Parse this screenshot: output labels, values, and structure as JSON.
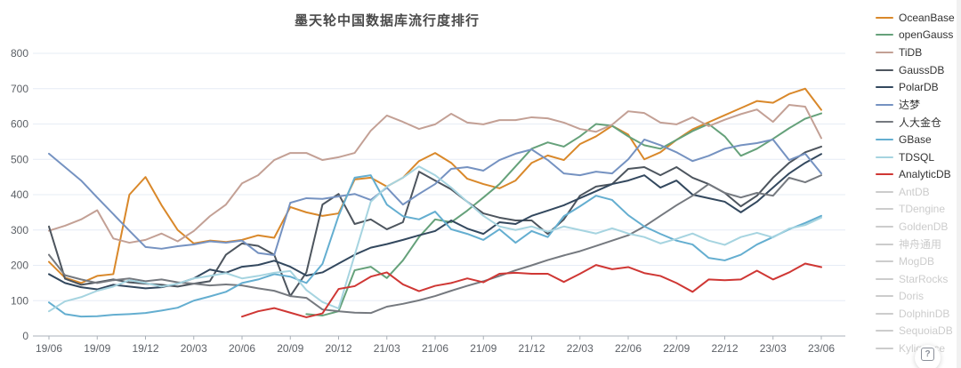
{
  "title": "墨天轮中国数据库流行度排行",
  "help_button": {
    "label": "?"
  },
  "legend": {
    "position": "right",
    "items": [
      {
        "name": "OceanBase",
        "color": "#d9882a",
        "active": true
      },
      {
        "name": "openGauss",
        "color": "#65a17a",
        "active": true
      },
      {
        "name": "TiDB",
        "color": "#c3a095",
        "active": true
      },
      {
        "name": "GaussDB",
        "color": "#4d555e",
        "active": true
      },
      {
        "name": "PolarDB",
        "color": "#33485e",
        "active": true
      },
      {
        "name": "达梦",
        "color": "#7592c1",
        "active": true
      },
      {
        "name": "人大金仓",
        "color": "#75797f",
        "active": true
      },
      {
        "name": "GBase",
        "color": "#64aed0",
        "active": true
      },
      {
        "name": "TDSQL",
        "color": "#a6d4e0",
        "active": true
      },
      {
        "name": "AnalyticDB",
        "color": "#cf3734",
        "active": true
      },
      {
        "name": "AntDB",
        "color": "#cccccc",
        "active": false
      },
      {
        "name": "TDengine",
        "color": "#cccccc",
        "active": false
      },
      {
        "name": "GoldenDB",
        "color": "#cccccc",
        "active": false
      },
      {
        "name": "神舟通用",
        "color": "#cccccc",
        "active": false
      },
      {
        "name": "MogDB",
        "color": "#cccccc",
        "active": false
      },
      {
        "name": "StarRocks",
        "color": "#cccccc",
        "active": false
      },
      {
        "name": "Doris",
        "color": "#cccccc",
        "active": false
      },
      {
        "name": "DolphinDB",
        "color": "#cccccc",
        "active": false
      },
      {
        "name": "SequoiaDB",
        "color": "#cccccc",
        "active": false
      },
      {
        "name": "Kyligence",
        "color": "#cccccc",
        "active": false
      }
    ]
  },
  "chart_data": {
    "type": "line",
    "title": "墨天轮中国数据库流行度排行",
    "xlabel": "",
    "ylabel": "",
    "ylim": [
      0,
      800
    ],
    "y_ticks": [
      0,
      100,
      200,
      300,
      400,
      500,
      600,
      700,
      800
    ],
    "grid": true,
    "legend_position": "right",
    "x": [
      "19/06",
      "19/07",
      "19/08",
      "19/09",
      "19/10",
      "19/11",
      "19/12",
      "20/01",
      "20/02",
      "20/03",
      "20/04",
      "20/05",
      "20/06",
      "20/07",
      "20/08",
      "20/09",
      "20/10",
      "20/11",
      "20/12",
      "21/01",
      "21/02",
      "21/03",
      "21/04",
      "21/05",
      "21/06",
      "21/07",
      "21/08",
      "21/09",
      "21/10",
      "21/11",
      "21/12",
      "22/01",
      "22/02",
      "22/03",
      "22/04",
      "22/05",
      "22/06",
      "22/07",
      "22/08",
      "22/09",
      "22/10",
      "22/11",
      "22/12",
      "23/01",
      "23/02",
      "23/03",
      "23/04",
      "23/05",
      "23/06"
    ],
    "x_tick_labels": [
      "19/06",
      "19/09",
      "19/12",
      "20/03",
      "20/06",
      "20/09",
      "20/12",
      "21/03",
      "21/06",
      "21/09",
      "21/12",
      "22/03",
      "22/06",
      "22/09",
      "22/12",
      "23/03",
      "23/06"
    ],
    "series": [
      {
        "name": "OceanBase",
        "color": "#d9882a",
        "values": [
          210,
          165,
          150,
          170,
          175,
          400,
          450,
          370,
          300,
          262,
          270,
          266,
          272,
          285,
          278,
          365,
          350,
          340,
          347,
          443,
          448,
          423,
          448,
          495,
          518,
          490,
          445,
          430,
          418,
          440,
          490,
          511,
          498,
          543,
          565,
          595,
          570,
          500,
          520,
          555,
          585,
          605,
          625,
          645,
          665,
          660,
          685,
          700,
          640
        ]
      },
      {
        "name": "openGauss",
        "color": "#65a17a",
        "values": [
          null,
          null,
          null,
          null,
          null,
          null,
          null,
          null,
          null,
          null,
          null,
          null,
          null,
          null,
          null,
          null,
          62,
          58,
          70,
          186,
          196,
          164,
          214,
          280,
          330,
          322,
          355,
          392,
          430,
          480,
          530,
          548,
          536,
          565,
          600,
          595,
          565,
          540,
          530,
          555,
          580,
          600,
          565,
          510,
          530,
          558,
          588,
          615,
          630
        ]
      },
      {
        "name": "TiDB",
        "color": "#c3a095",
        "values": [
          298,
          312,
          330,
          356,
          276,
          264,
          272,
          290,
          268,
          297,
          339,
          372,
          432,
          455,
          498,
          518,
          518,
          498,
          506,
          518,
          581,
          624,
          606,
          586,
          599,
          629,
          604,
          599,
          611,
          611,
          619,
          616,
          604,
          586,
          578,
          598,
          636,
          631,
          604,
          599,
          619,
          594,
          612,
          628,
          641,
          606,
          654,
          649,
          560
        ]
      },
      {
        "name": "GaussDB",
        "color": "#4d555e",
        "values": [
          310,
          162,
          145,
          152,
          160,
          152,
          148,
          145,
          140,
          148,
          155,
          230,
          262,
          255,
          230,
          113,
          180,
          372,
          402,
          317,
          330,
          302,
          322,
          465,
          440,
          415,
          380,
          347,
          335,
          327,
          327,
          289,
          330,
          397,
          423,
          430,
          473,
          478,
          455,
          478,
          448,
          430,
          405,
          367,
          397,
          448,
          490,
          520,
          536
        ]
      },
      {
        "name": "PolarDB",
        "color": "#33485e",
        "values": [
          175,
          150,
          138,
          132,
          145,
          140,
          135,
          138,
          148,
          163,
          188,
          179,
          196,
          201,
          213,
          196,
          171,
          180,
          205,
          230,
          250,
          260,
          272,
          285,
          297,
          327,
          304,
          289,
          322,
          317,
          340,
          355,
          370,
          390,
          410,
          430,
          440,
          455,
          420,
          440,
          400,
          390,
          380,
          350,
          380,
          420,
          460,
          490,
          515
        ]
      },
      {
        "name": "达梦",
        "color": "#7592c1",
        "values": [
          516,
          478,
          440,
          392,
          345,
          298,
          252,
          247,
          254,
          259,
          268,
          264,
          270,
          235,
          229,
          377,
          390,
          388,
          395,
          402,
          385,
          420,
          372,
          402,
          430,
          473,
          478,
          468,
          498,
          516,
          528,
          498,
          460,
          455,
          465,
          460,
          500,
          556,
          540,
          520,
          495,
          510,
          530,
          540,
          546,
          556,
          498,
          516,
          460
        ]
      },
      {
        "name": "人大金仓",
        "color": "#75797f",
        "values": [
          230,
          172,
          160,
          150,
          158,
          163,
          155,
          160,
          152,
          148,
          143,
          146,
          143,
          135,
          128,
          113,
          108,
          75,
          70,
          66,
          65,
          83,
          91,
          101,
          113,
          128,
          142,
          155,
          170,
          186,
          200,
          215,
          228,
          240,
          255,
          270,
          285,
          310,
          340,
          370,
          397,
          430,
          405,
          392,
          405,
          397,
          448,
          435,
          455
        ]
      },
      {
        "name": "GBase",
        "color": "#64aed0",
        "values": [
          95,
          62,
          55,
          56,
          60,
          62,
          65,
          72,
          80,
          100,
          112,
          125,
          150,
          160,
          175,
          168,
          150,
          204,
          340,
          448,
          455,
          372,
          339,
          330,
          352,
          302,
          289,
          272,
          302,
          264,
          297,
          280,
          339,
          367,
          397,
          385,
          342,
          310,
          289,
          270,
          259,
          221,
          214,
          230,
          259,
          280,
          302,
          320,
          340
        ]
      },
      {
        "name": "TDSQL",
        "color": "#a6d4e0",
        "values": [
          70,
          98,
          110,
          128,
          140,
          158,
          150,
          140,
          148,
          163,
          170,
          178,
          163,
          170,
          179,
          184,
          130,
          96,
          78,
          229,
          380,
          423,
          448,
          480,
          455,
          420,
          380,
          340,
          310,
          300,
          310,
          295,
          310,
          300,
          290,
          305,
          290,
          280,
          262,
          275,
          290,
          270,
          258,
          280,
          292,
          279,
          304,
          314,
          335
        ]
      },
      {
        "name": "AnalyticDB",
        "color": "#cf3734",
        "values": [
          null,
          null,
          null,
          null,
          null,
          null,
          null,
          null,
          null,
          null,
          null,
          null,
          55,
          70,
          79,
          66,
          53,
          64,
          133,
          141,
          168,
          180,
          146,
          127,
          142,
          150,
          163,
          152,
          176,
          179,
          176,
          176,
          153,
          176,
          201,
          189,
          195,
          178,
          170,
          150,
          125,
          160,
          158,
          160,
          185,
          160,
          180,
          205,
          195
        ]
      }
    ]
  },
  "axis_style": {
    "label_color": "#5c6066",
    "grid_color": "#e6ecf5",
    "axis_color": "#aab0b8"
  }
}
